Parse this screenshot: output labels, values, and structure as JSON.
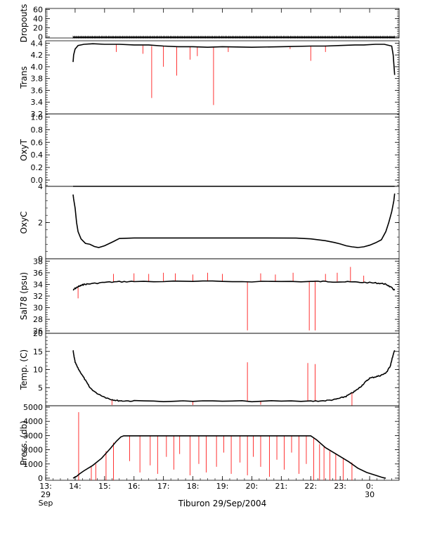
{
  "chart_data": {
    "type": "line",
    "title": "",
    "xlabel": "Tiburon 29/Sep/2004",
    "x_ticks": [
      {
        "hour": 13,
        "label": "13:",
        "sub1": "29",
        "sub2": "Sep"
      },
      {
        "hour": 14,
        "label": "14:"
      },
      {
        "hour": 15,
        "label": "15:"
      },
      {
        "hour": 16,
        "label": "16:"
      },
      {
        "hour": 17,
        "label": "17:"
      },
      {
        "hour": 18,
        "label": "18:"
      },
      {
        "hour": 19,
        "label": "19:"
      },
      {
        "hour": 20,
        "label": "20:"
      },
      {
        "hour": 21,
        "label": "21:"
      },
      {
        "hour": 22,
        "label": "22:"
      },
      {
        "hour": 23,
        "label": "23:"
      },
      {
        "hour": 24,
        "label": "0:",
        "sub1": "30"
      }
    ],
    "xlim": [
      13,
      25
    ],
    "colors": {
      "data": "#000000",
      "flagged": "#ff0000",
      "axes": "#000000"
    },
    "panels": [
      {
        "id": "dropouts",
        "ylabel": "Dropouts",
        "ylim": [
          -2,
          62
        ],
        "yticks": [
          0,
          20,
          40,
          60
        ],
        "ytick_labels": [
          "0",
          "20",
          "40",
          "60"
        ],
        "series": [
          {
            "x": [
              13.93,
              24.85
            ],
            "y": [
              0,
              0
            ]
          }
        ],
        "flagged": []
      },
      {
        "id": "trans",
        "ylabel": "Trans",
        "ylim": [
          3.2,
          4.44
        ],
        "yticks": [
          3.2,
          3.4,
          3.6,
          3.8,
          4.0,
          4.2,
          4.4
        ],
        "ytick_labels": [
          "3.2",
          "3.4",
          "3.6",
          "3.8",
          "4.0",
          "4.2",
          "4.4"
        ],
        "series": [
          {
            "x": [
              13.93,
              13.95,
              14.0,
              14.1,
              14.3,
              14.6,
              15.0,
              15.5,
              16.0,
              16.5,
              17.0,
              17.5,
              18.0,
              18.5,
              19.0,
              20.0,
              21.0,
              22.0,
              22.5,
              23.0,
              23.5,
              23.8,
              24.2,
              24.5,
              24.75,
              24.8,
              24.85
            ],
            "y": [
              4.08,
              4.2,
              4.3,
              4.36,
              4.38,
              4.39,
              4.38,
              4.38,
              4.37,
              4.37,
              4.35,
              4.34,
              4.34,
              4.33,
              4.34,
              4.33,
              4.34,
              4.35,
              4.35,
              4.36,
              4.37,
              4.37,
              4.38,
              4.38,
              4.35,
              4.2,
              3.86
            ]
          }
        ],
        "flagged": [
          {
            "x": 15.4,
            "ymin": 4.25,
            "ymax": 4.38
          },
          {
            "x": 16.3,
            "ymin": 4.22,
            "ymax": 4.36
          },
          {
            "x": 16.6,
            "ymin": 3.47,
            "ymax": 4.35
          },
          {
            "x": 17.0,
            "ymin": 4.0,
            "ymax": 4.35
          },
          {
            "x": 17.45,
            "ymin": 3.85,
            "ymax": 4.34
          },
          {
            "x": 17.9,
            "ymin": 4.12,
            "ymax": 4.34
          },
          {
            "x": 18.15,
            "ymin": 4.18,
            "ymax": 4.33
          },
          {
            "x": 18.7,
            "ymin": 3.35,
            "ymax": 4.33
          },
          {
            "x": 19.2,
            "ymin": 4.25,
            "ymax": 4.34
          },
          {
            "x": 21.3,
            "ymin": 4.3,
            "ymax": 4.34
          },
          {
            "x": 22.0,
            "ymin": 4.1,
            "ymax": 4.35
          },
          {
            "x": 22.5,
            "ymin": 4.25,
            "ymax": 4.36
          }
        ]
      },
      {
        "id": "oxyt",
        "ylabel": "OxyT",
        "ylim": [
          -0.1,
          1.05
        ],
        "yticks": [
          0.0,
          0.2,
          0.4,
          0.6,
          0.8,
          1.0
        ],
        "ytick_labels": [
          "0.0",
          "0.2",
          "0.4",
          "0.6",
          "0.8",
          "1.0"
        ],
        "series": [],
        "flagged": []
      },
      {
        "id": "oxyc",
        "ylabel": "OxyC",
        "ylim": [
          0,
          4
        ],
        "yticks": [
          0,
          2,
          4
        ],
        "ytick_labels": [
          "0",
          "2",
          "4"
        ],
        "series": [
          {
            "x": [
              13.93,
              24.85
            ],
            "y": [
              4.0,
              4.0
            ]
          },
          {
            "x": [
              13.93,
              13.95,
              14.0,
              14.05,
              14.1,
              14.2,
              14.35,
              14.5,
              14.65,
              14.8,
              15.0,
              15.3,
              15.5,
              16.0,
              18.0,
              20.0,
              21.5,
              22.0,
              22.5,
              22.8,
              23.0,
              23.2,
              23.4,
              23.6,
              23.8,
              24.0,
              24.2,
              24.4,
              24.55,
              24.65,
              24.75,
              24.82,
              24.85
            ],
            "y": [
              3.55,
              3.3,
              2.8,
              2.0,
              1.5,
              1.1,
              0.85,
              0.8,
              0.68,
              0.62,
              0.72,
              0.95,
              1.12,
              1.15,
              1.15,
              1.15,
              1.14,
              1.1,
              1.0,
              0.9,
              0.82,
              0.72,
              0.66,
              0.62,
              0.66,
              0.75,
              0.88,
              1.05,
              1.5,
              2.0,
              2.6,
              3.2,
              3.6
            ]
          }
        ],
        "flagged": []
      },
      {
        "id": "sal",
        "ylabel": "Sal78 (psu)",
        "ylim": [
          25.6,
          38.4
        ],
        "yticks": [
          26,
          28,
          30,
          32,
          34,
          36,
          38
        ],
        "ytick_labels": [
          "26",
          "28",
          "30",
          "32",
          "34",
          "36",
          "38"
        ],
        "series": [
          {
            "x": [
              13.93,
              14.0,
              14.1,
              14.2,
              14.3,
              14.5,
              15.0,
              15.5,
              16.0,
              18.0,
              20.0,
              22.0,
              22.5,
              23.0,
              23.5,
              24.0,
              24.3,
              24.5,
              24.6,
              24.75,
              24.85
            ],
            "y": [
              33.0,
              33.3,
              33.6,
              33.8,
              34.0,
              34.1,
              34.35,
              34.45,
              34.5,
              34.5,
              34.5,
              34.5,
              34.5,
              34.45,
              34.4,
              34.3,
              34.2,
              34.1,
              33.9,
              33.4,
              33.0
            ],
            "mode": "noisy"
          }
        ],
        "flagged": [
          {
            "x": 14.1,
            "ymin": 31.6,
            "ymax": 33.5
          },
          {
            "x": 15.3,
            "ymin": 34.5,
            "ymax": 35.8
          },
          {
            "x": 16.0,
            "ymin": 34.5,
            "ymax": 35.9
          },
          {
            "x": 16.5,
            "ymin": 34.5,
            "ymax": 35.8
          },
          {
            "x": 17.0,
            "ymin": 34.5,
            "ymax": 36.0
          },
          {
            "x": 17.4,
            "ymin": 34.5,
            "ymax": 35.9
          },
          {
            "x": 18.0,
            "ymin": 34.5,
            "ymax": 35.7
          },
          {
            "x": 18.5,
            "ymin": 34.5,
            "ymax": 36.0
          },
          {
            "x": 19.0,
            "ymin": 34.5,
            "ymax": 35.8
          },
          {
            "x": 19.85,
            "ymin": 26.1,
            "ymax": 34.5
          },
          {
            "x": 20.3,
            "ymin": 34.5,
            "ymax": 35.9
          },
          {
            "x": 20.8,
            "ymin": 34.5,
            "ymax": 35.7
          },
          {
            "x": 21.4,
            "ymin": 34.5,
            "ymax": 36.0
          },
          {
            "x": 21.95,
            "ymin": 26.1,
            "ymax": 34.5
          },
          {
            "x": 22.15,
            "ymin": 26.1,
            "ymax": 34.5
          },
          {
            "x": 22.5,
            "ymin": 34.5,
            "ymax": 35.8
          },
          {
            "x": 22.9,
            "ymin": 34.5,
            "ymax": 36.0
          },
          {
            "x": 23.35,
            "ymin": 34.4,
            "ymax": 37.0
          },
          {
            "x": 23.8,
            "ymin": 34.3,
            "ymax": 35.5
          }
        ]
      },
      {
        "id": "temp",
        "ylabel": "Temp. (C)",
        "ylim": [
          0,
          20
        ],
        "yticks": [
          5,
          10,
          15,
          20
        ],
        "ytick_labels": [
          "5",
          "10",
          "15",
          "20"
        ],
        "series": [
          {
            "x": [
              13.93,
              13.95,
              14.0,
              14.1,
              14.2,
              14.35,
              14.5,
              14.7,
              15.0,
              15.2,
              15.4,
              15.6,
              16.0,
              18.0,
              20.0,
              22.0,
              22.5,
              22.8,
              23.0,
              23.2,
              23.4,
              23.55,
              23.7,
              23.85,
              24.0,
              24.2,
              24.35,
              24.5,
              24.6,
              24.7,
              24.78,
              24.85
            ],
            "y": [
              15.3,
              14.2,
              12.0,
              10.3,
              9.0,
              7.0,
              5.0,
              3.6,
              2.4,
              1.8,
              1.45,
              1.35,
              1.3,
              1.25,
              1.25,
              1.25,
              1.4,
              1.7,
              2.1,
              2.6,
              3.5,
              4.3,
              5.3,
              6.5,
              7.6,
              8.0,
              8.3,
              8.8,
              9.5,
              11.0,
              13.5,
              15.3
            ],
            "mode": "noisy"
          }
        ],
        "flagged": [
          {
            "x": 15.25,
            "ymin": 0.2,
            "ymax": 1.8
          },
          {
            "x": 18.0,
            "ymin": 0.2,
            "ymax": 1.25
          },
          {
            "x": 19.85,
            "ymin": 1.25,
            "ymax": 12.0
          },
          {
            "x": 20.3,
            "ymin": 0.3,
            "ymax": 1.25
          },
          {
            "x": 21.9,
            "ymin": 1.25,
            "ymax": 11.8
          },
          {
            "x": 22.15,
            "ymin": 1.25,
            "ymax": 11.5
          },
          {
            "x": 23.4,
            "ymin": 0.1,
            "ymax": 3.5
          }
        ]
      },
      {
        "id": "press",
        "ylabel": "Press. (db)",
        "ylim": [
          -150,
          5100
        ],
        "yticks": [
          0,
          1000,
          2000,
          3000,
          4000,
          5000
        ],
        "ytick_labels": [
          "0",
          "1000",
          "2000",
          "3000",
          "4000",
          "5000"
        ],
        "series": [
          {
            "x": [
              13.93,
              14.05,
              14.15,
              14.3,
              14.6,
              14.9,
              15.2,
              15.4,
              15.55,
              15.65,
              22.0,
              22.2,
              22.5,
              22.9,
              23.3,
              23.6,
              23.9,
              24.2,
              24.45,
              24.55
            ],
            "y": [
              0,
              120,
              300,
              520,
              900,
              1400,
              2100,
              2600,
              2900,
              2980,
              2980,
              2700,
              2150,
              1650,
              1150,
              700,
              400,
              200,
              40,
              0
            ]
          }
        ],
        "flagged": [
          {
            "x": 14.12,
            "ymin": -150,
            "ymax": 4650
          },
          {
            "x": 14.55,
            "ymin": -150,
            "ymax": 800
          },
          {
            "x": 14.7,
            "ymin": -150,
            "ymax": 1000
          },
          {
            "x": 15.05,
            "ymin": -150,
            "ymax": 1900
          },
          {
            "x": 15.3,
            "ymin": -150,
            "ymax": 2500
          },
          {
            "x": 15.85,
            "ymin": 1200,
            "ymax": 2980
          },
          {
            "x": 16.2,
            "ymin": 400,
            "ymax": 2980
          },
          {
            "x": 16.55,
            "ymin": 900,
            "ymax": 2980
          },
          {
            "x": 16.8,
            "ymin": 300,
            "ymax": 2980
          },
          {
            "x": 17.1,
            "ymin": 1500,
            "ymax": 2980
          },
          {
            "x": 17.35,
            "ymin": 600,
            "ymax": 2980
          },
          {
            "x": 17.55,
            "ymin": 1700,
            "ymax": 2980
          },
          {
            "x": 17.9,
            "ymin": 200,
            "ymax": 2980
          },
          {
            "x": 18.2,
            "ymin": 1000,
            "ymax": 2980
          },
          {
            "x": 18.45,
            "ymin": 400,
            "ymax": 2980
          },
          {
            "x": 18.8,
            "ymin": 800,
            "ymax": 2980
          },
          {
            "x": 19.05,
            "ymin": 1800,
            "ymax": 2980
          },
          {
            "x": 19.3,
            "ymin": 300,
            "ymax": 2980
          },
          {
            "x": 19.6,
            "ymin": 1100,
            "ymax": 2980
          },
          {
            "x": 19.85,
            "ymin": 200,
            "ymax": 2980
          },
          {
            "x": 20.05,
            "ymin": 1500,
            "ymax": 2980
          },
          {
            "x": 20.3,
            "ymin": 800,
            "ymax": 2980
          },
          {
            "x": 20.6,
            "ymin": 100,
            "ymax": 2980
          },
          {
            "x": 20.85,
            "ymin": 1300,
            "ymax": 2980
          },
          {
            "x": 21.1,
            "ymin": 600,
            "ymax": 2980
          },
          {
            "x": 21.35,
            "ymin": 1800,
            "ymax": 2980
          },
          {
            "x": 21.6,
            "ymin": 300,
            "ymax": 2980
          },
          {
            "x": 21.85,
            "ymin": 1000,
            "ymax": 2980
          },
          {
            "x": 22.1,
            "ymin": -150,
            "ymax": 2800
          },
          {
            "x": 22.3,
            "ymin": -150,
            "ymax": 2400
          },
          {
            "x": 22.45,
            "ymin": -150,
            "ymax": 2200
          },
          {
            "x": 22.65,
            "ymin": -150,
            "ymax": 1900
          },
          {
            "x": 22.85,
            "ymin": -150,
            "ymax": 1700
          },
          {
            "x": 23.1,
            "ymin": -150,
            "ymax": 1400
          },
          {
            "x": 23.4,
            "ymin": -150,
            "ymax": 1100
          }
        ]
      }
    ]
  }
}
